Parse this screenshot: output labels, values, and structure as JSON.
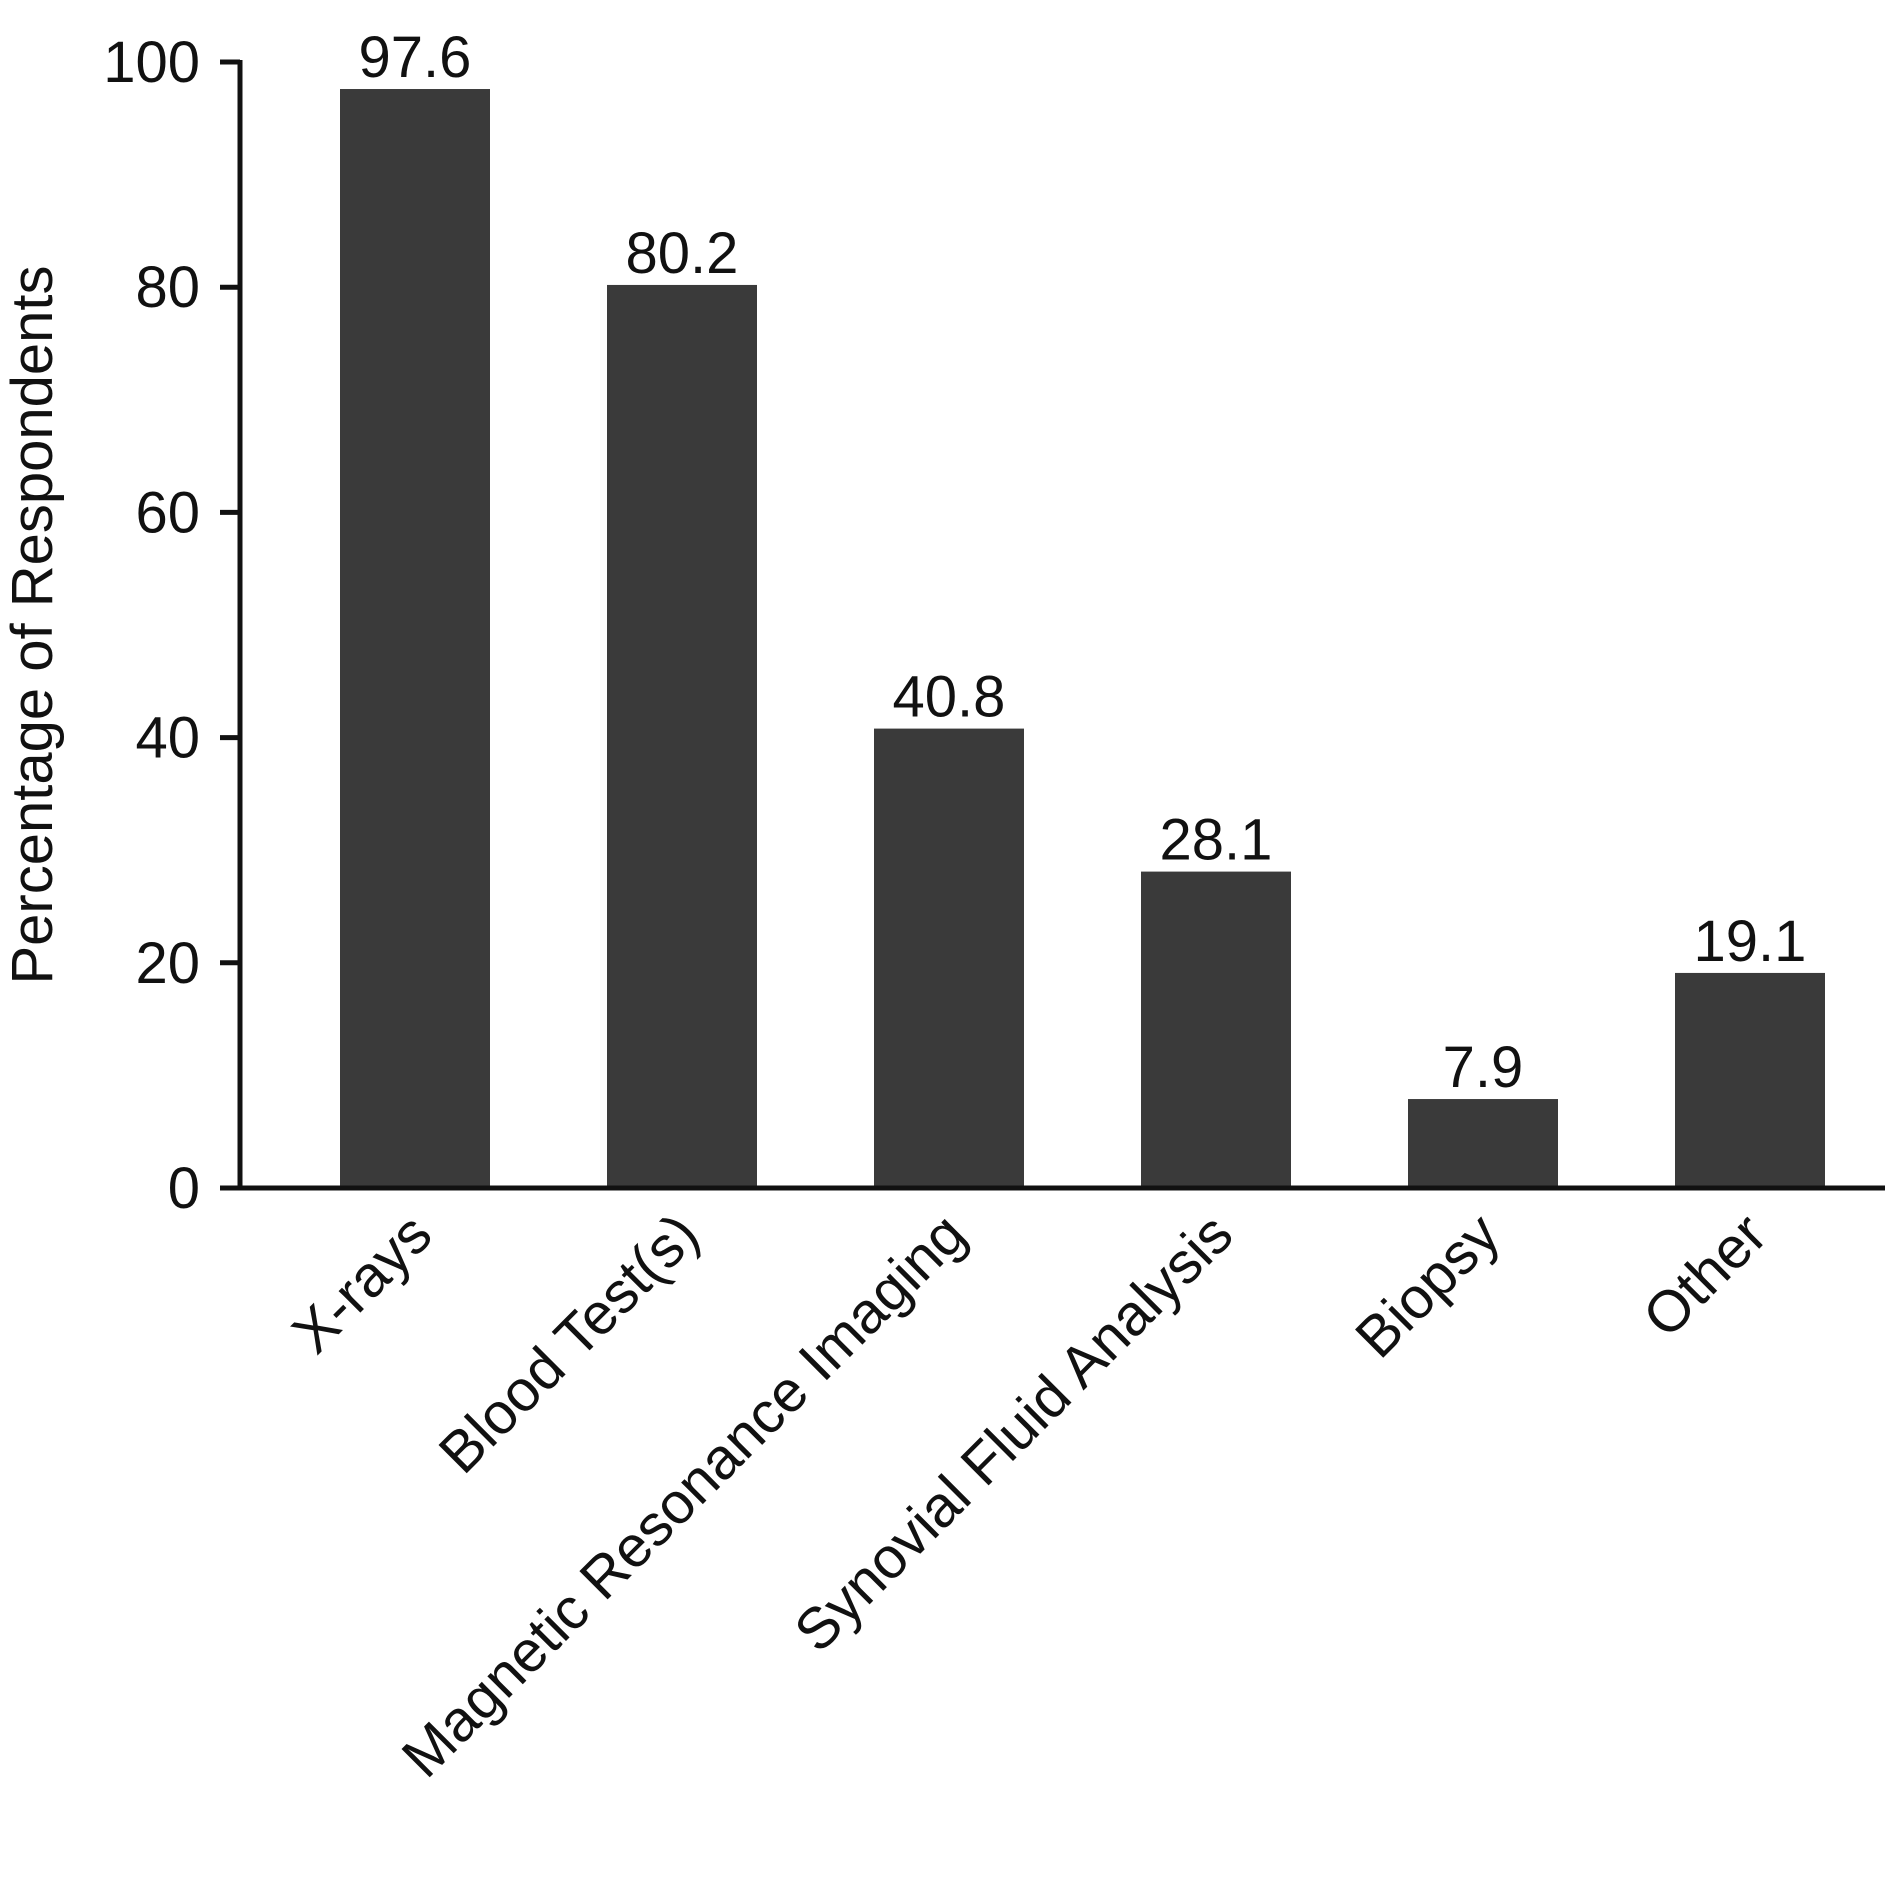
{
  "chart_data": {
    "type": "bar",
    "title": "",
    "xlabel": "",
    "ylabel": "Percentage of Respondents",
    "ylim": [
      0,
      100
    ],
    "yticks": [
      0,
      20,
      40,
      60,
      80,
      100
    ],
    "grid": false,
    "categories": [
      "X-rays",
      "Blood Test(s)",
      "Magnetic Resonance Imaging",
      "Synovial Fluid Analysis",
      "Biopsy",
      "Other"
    ],
    "values": [
      97.6,
      80.2,
      40.8,
      28.1,
      7.9,
      19.1
    ],
    "value_labels": [
      "97.6",
      "80.2",
      "40.8",
      "28.1",
      "7.9",
      "19.1"
    ],
    "bar_color": "#3a3a3a"
  }
}
